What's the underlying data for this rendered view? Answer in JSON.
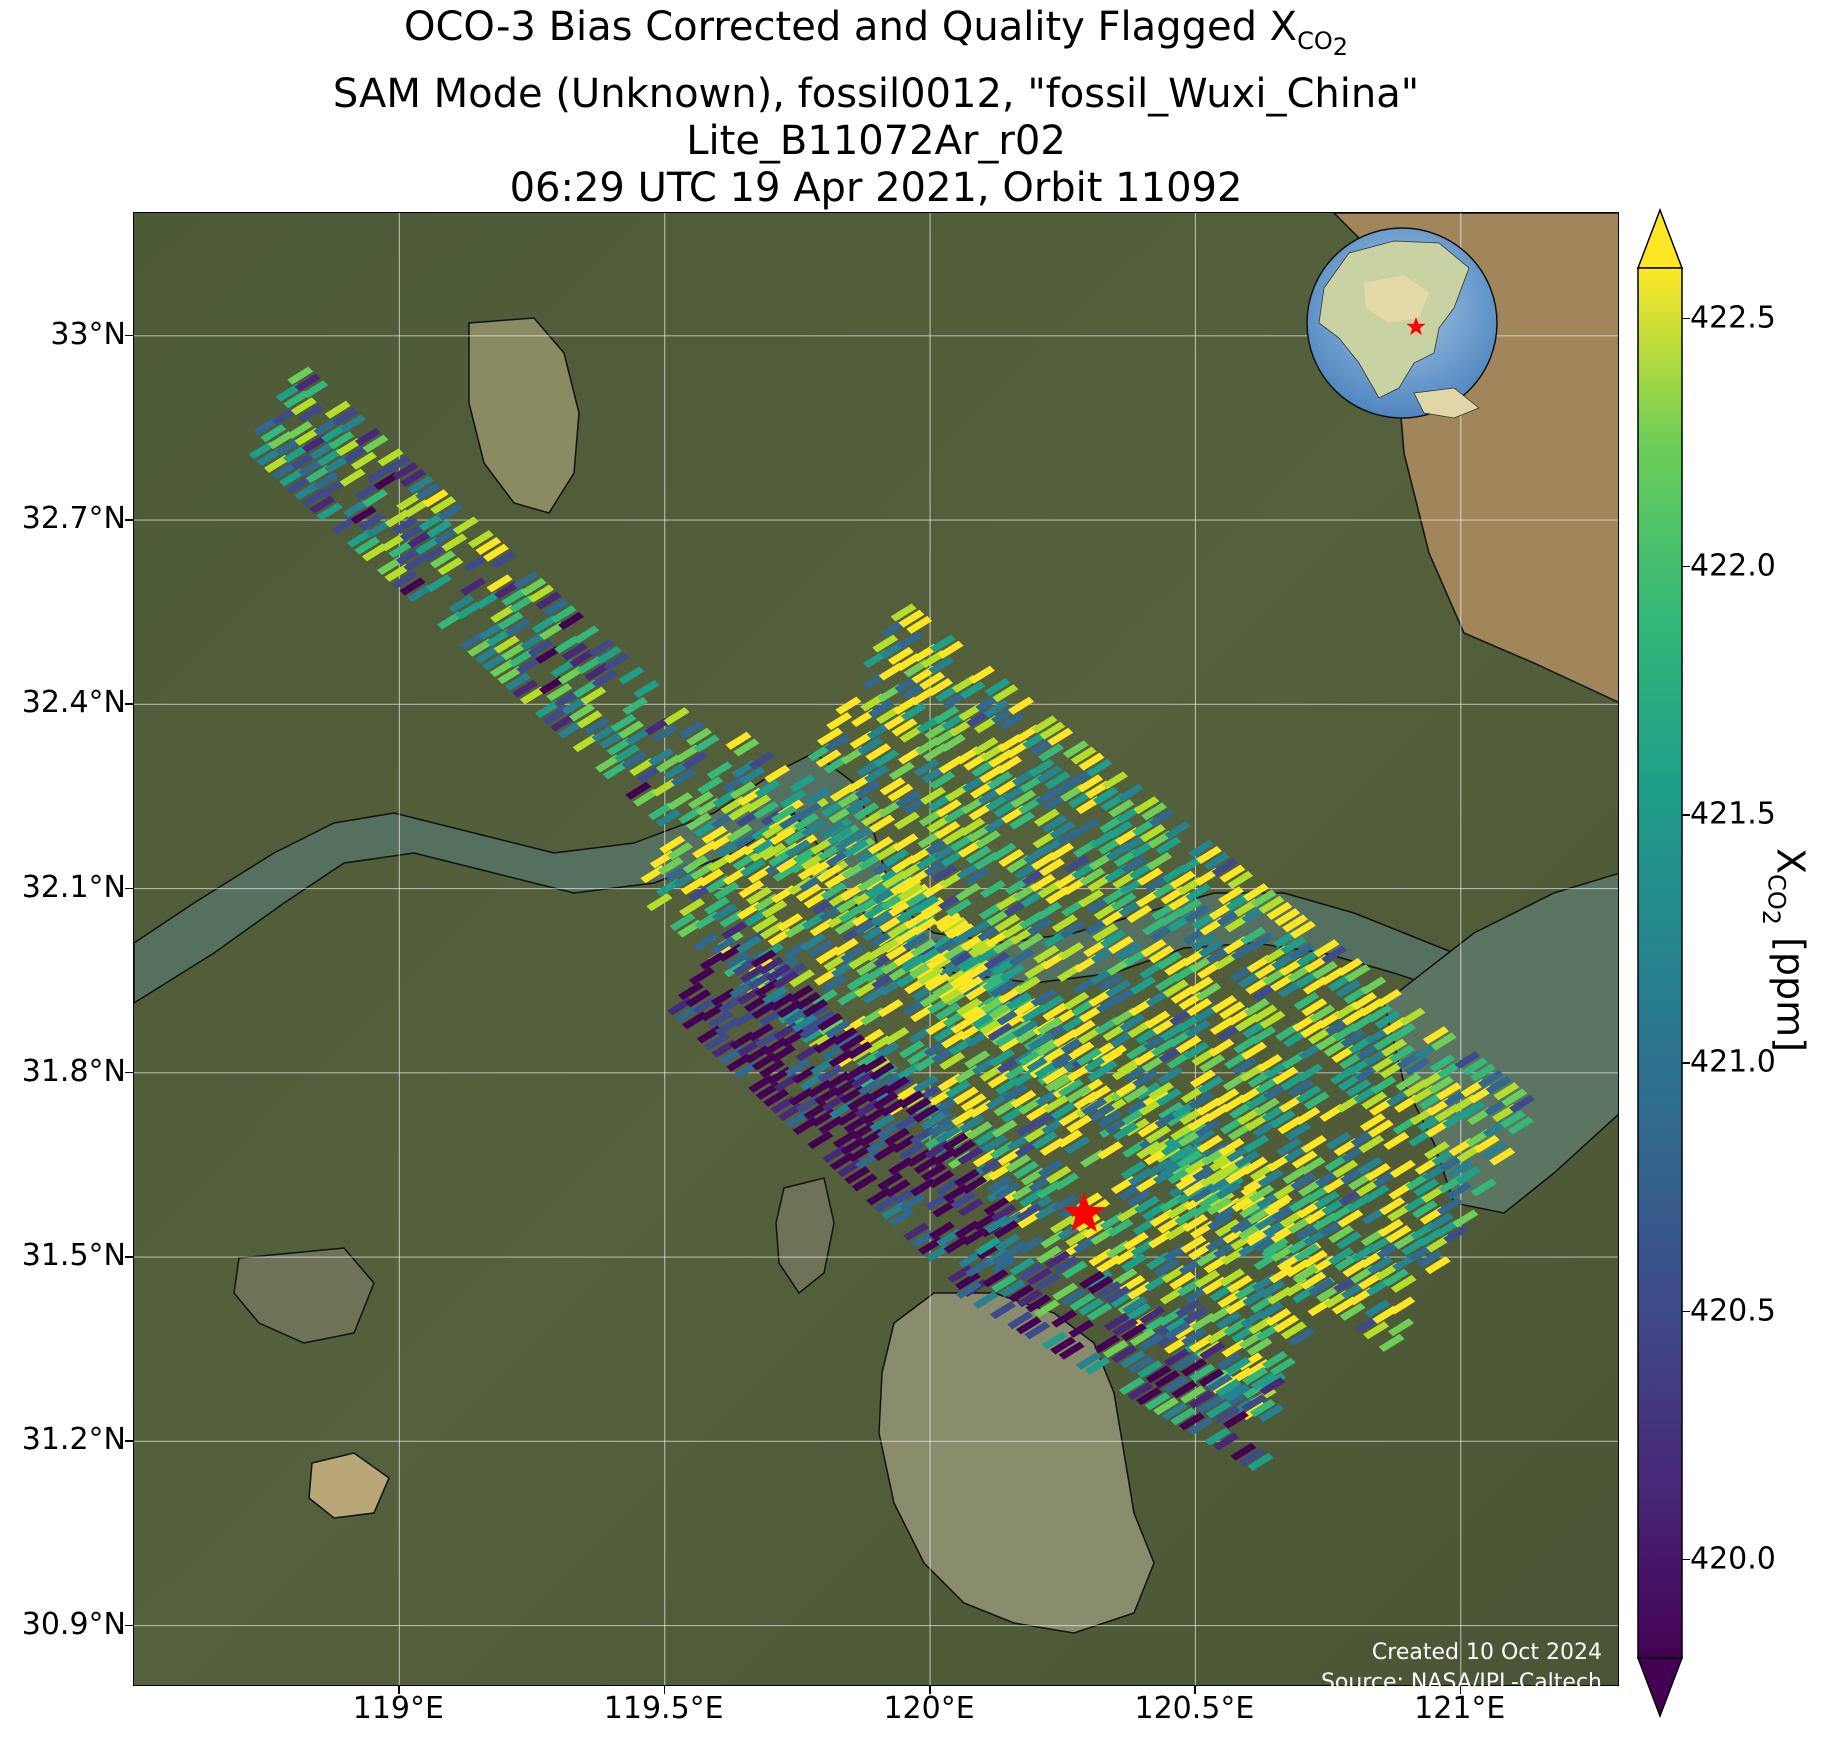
{
  "title": {
    "line1_prefix": "OCO-3 Bias Corrected and Quality Flagged X",
    "line1_sub": "CO",
    "line1_sub2": "2",
    "line2": "SAM Mode (Unknown), fossil0012, \"fossil_Wuxi_China\"",
    "line3": "Lite_B11072Ar_r02",
    "line4": "06:29 UTC 19 Apr 2021, Orbit 11092"
  },
  "map": {
    "lon_range": [
      118.5,
      121.3
    ],
    "lat_range": [
      30.8,
      33.2
    ],
    "target": {
      "lon": 120.29,
      "lat": 31.57,
      "color": "#ff0000"
    },
    "y_ticks": [
      {
        "value": 33.0,
        "label": "33°N"
      },
      {
        "value": 32.7,
        "label": "32.7°N"
      },
      {
        "value": 32.4,
        "label": "32.4°N"
      },
      {
        "value": 32.1,
        "label": "32.1°N"
      },
      {
        "value": 31.8,
        "label": "31.8°N"
      },
      {
        "value": 31.5,
        "label": "31.5°N"
      },
      {
        "value": 31.2,
        "label": "31.2°N"
      },
      {
        "value": 30.9,
        "label": "30.9°N"
      }
    ],
    "x_ticks": [
      {
        "value": 119.0,
        "label": "119°E"
      },
      {
        "value": 119.5,
        "label": "119.5°E"
      },
      {
        "value": 120.0,
        "label": "120°E"
      },
      {
        "value": 120.5,
        "label": "120.5°E"
      },
      {
        "value": 121.0,
        "label": "121°E"
      }
    ],
    "grid": true,
    "inset_globe": {
      "center_lon": 115,
      "center_lat": 25,
      "marker": "red-star"
    },
    "credit_line1": "Created 10 Oct 2024",
    "credit_line2": "Source: NASA/JPL-Caltech"
  },
  "colorbar": {
    "colormap": "viridis",
    "vmin": 419.8,
    "vmax": 422.6,
    "extend": "both",
    "label_prefix": "X",
    "label_sub": "CO",
    "label_sub2": "2",
    "label_suffix": " [ppm]",
    "ticks": [
      {
        "value": 420.0,
        "label": "420.0"
      },
      {
        "value": 420.5,
        "label": "420.5"
      },
      {
        "value": 421.0,
        "label": "421.0"
      },
      {
        "value": 421.5,
        "label": "421.5"
      },
      {
        "value": 422.0,
        "label": "422.0"
      },
      {
        "value": 422.5,
        "label": "422.5"
      }
    ]
  },
  "chart_data": {
    "type": "scatter",
    "xlabel": "",
    "ylabel": "",
    "xlim": [
      118.5,
      121.3
    ],
    "ylim": [
      30.8,
      33.2
    ],
    "value_range": [
      419.8,
      422.6
    ],
    "swaths": [
      {
        "start": [
          118.77,
          32.88
        ],
        "end": [
          119.55,
          32.27
        ],
        "half_width_deg": 0.07,
        "mean_value": 421.2
      },
      {
        "start": [
          119.55,
          32.22
        ],
        "end": [
          120.7,
          31.37
        ],
        "half_width_deg": 0.15,
        "mean_value": 421.7
      },
      {
        "start": [
          119.82,
          32.36
        ],
        "end": [
          121.0,
          31.55
        ],
        "half_width_deg": 0.23,
        "mean_value": 421.8
      },
      {
        "start": [
          119.58,
          31.97
        ],
        "end": [
          120.15,
          31.5
        ],
        "half_width_deg": 0.08,
        "mean_value": 419.9
      },
      {
        "start": [
          120.1,
          31.5
        ],
        "end": [
          120.65,
          31.22
        ],
        "half_width_deg": 0.06,
        "mean_value": 420.7
      }
    ]
  }
}
